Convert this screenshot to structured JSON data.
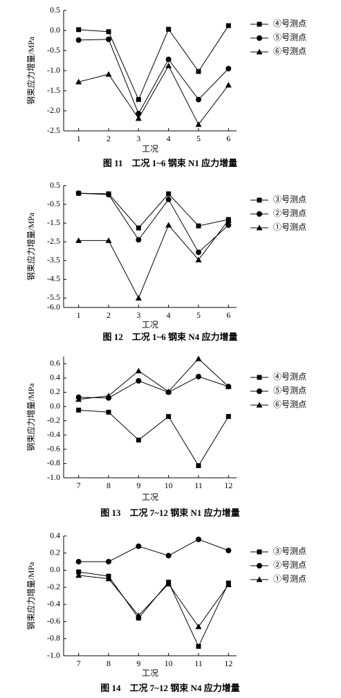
{
  "chart_data": [
    {
      "type": "line",
      "title": "图 11　工况 1~6 钢束 N1 应力增量",
      "xlabel": "工况",
      "ylabel": "钢束应力增量/MPa",
      "x": [
        1,
        2,
        3,
        4,
        5,
        6
      ],
      "xlim": [
        0.5,
        6.5
      ],
      "xticks": [
        1,
        2,
        3,
        4,
        5,
        6
      ],
      "ylim": [
        -2.5,
        0.5
      ],
      "yticks": [
        0.5,
        {
          "value": 0,
          "label": "0.0"
        },
        -0.5,
        {
          "value": -1,
          "label": "-1.0"
        },
        -1.5,
        {
          "value": -2,
          "label": "-2.0"
        },
        -2.5
      ],
      "legend": "right",
      "series": [
        {
          "name": "④号测点",
          "color": "#000000",
          "marker": "square",
          "values": [
            0.02,
            -0.03,
            -1.72,
            0.03,
            -1.02,
            0.12
          ]
        },
        {
          "name": "⑤号测点",
          "color": "#000000",
          "marker": "circle",
          "values": [
            -0.24,
            -0.22,
            -2.07,
            -0.72,
            -1.72,
            -0.95
          ]
        },
        {
          "name": "⑥号测点",
          "color": "#000000",
          "marker": "triangle",
          "values": [
            -1.28,
            -1.09,
            -2.19,
            -0.88,
            -2.34,
            -1.36
          ]
        }
      ]
    },
    {
      "type": "line",
      "title": "图 12　工况 1~6 钢束 N4 应力增量",
      "xlabel": "工况",
      "ylabel": "钢束应力增量/MPa",
      "x": [
        1,
        2,
        3,
        4,
        5,
        6
      ],
      "xlim": [
        0.5,
        6.5
      ],
      "xticks": [
        1,
        2,
        3,
        4,
        5,
        6
      ],
      "ylim": [
        -6,
        0.5
      ],
      "yticks": [
        0.5,
        -0.5,
        -1.5,
        -2.5,
        -3.5,
        -4.5,
        -5.5,
        {
          "value": -6,
          "label": "-6.0"
        }
      ],
      "legend": "right",
      "series": [
        {
          "name": "③号测点",
          "color": "#000000",
          "marker": "square",
          "values": [
            0.09,
            0.06,
            -1.76,
            0.06,
            -1.65,
            -1.31
          ]
        },
        {
          "name": "②号测点",
          "color": "#000000",
          "marker": "circle",
          "values": [
            0.09,
            0.02,
            -2.39,
            -0.24,
            -3.06,
            -1.61
          ]
        },
        {
          "name": "①号测点",
          "color": "#000000",
          "marker": "triangle",
          "values": [
            -2.43,
            -2.43,
            -5.5,
            -1.61,
            -3.46,
            -1.35
          ]
        }
      ]
    },
    {
      "type": "line",
      "title": "图 13　工况 7~12 钢束 N1 应力增量",
      "xlabel": "工况",
      "ylabel": "钢束应力增量/MPa",
      "x": [
        7,
        8,
        9,
        10,
        11,
        12
      ],
      "xlim": [
        6.5,
        12.5
      ],
      "xticks": [
        7,
        8,
        9,
        10,
        11,
        12
      ],
      "ylim": [
        -1,
        0.7
      ],
      "yticks": [
        0.6,
        0.4,
        0.2,
        {
          "value": 0,
          "label": "0.0"
        },
        -0.2,
        -0.4,
        -0.6,
        -0.8,
        {
          "value": -1,
          "label": "-1.0"
        }
      ],
      "legend": "right",
      "series": [
        {
          "name": "④号测点",
          "color": "#000000",
          "marker": "square",
          "values": [
            -0.05,
            -0.08,
            -0.47,
            -0.14,
            -0.83,
            -0.14
          ]
        },
        {
          "name": "⑤号测点",
          "color": "#000000",
          "marker": "circle",
          "values": [
            0.13,
            0.12,
            0.36,
            0.2,
            0.42,
            0.28
          ]
        },
        {
          "name": "⑥号测点",
          "color": "#000000",
          "marker": "triangle",
          "values": [
            0.1,
            0.15,
            0.5,
            0.21,
            0.67,
            0.28
          ]
        }
      ]
    },
    {
      "type": "line",
      "title": "图 14　工况 7~12 钢束 N4 应力增量",
      "xlabel": "工况",
      "ylabel": "钢束应力增量/MPa",
      "x": [
        7,
        8,
        9,
        10,
        11,
        12
      ],
      "xlim": [
        6.5,
        12.5
      ],
      "xticks": [
        7,
        8,
        9,
        10,
        11,
        12
      ],
      "ylim": [
        -1,
        0.4
      ],
      "yticks": [
        0.4,
        0.2,
        {
          "value": 0,
          "label": "0.0"
        },
        -0.2,
        -0.4,
        -0.6,
        -0.8,
        {
          "value": -1,
          "label": "-1.0"
        }
      ],
      "legend": "right",
      "series": [
        {
          "name": "③号测点",
          "color": "#000000",
          "marker": "square",
          "values": [
            -0.02,
            -0.07,
            -0.56,
            -0.14,
            -0.89,
            -0.15
          ]
        },
        {
          "name": "②号测点",
          "color": "#000000",
          "marker": "circle",
          "values": [
            0.1,
            0.1,
            0.28,
            0.17,
            0.36,
            0.23
          ]
        },
        {
          "name": "①号测点",
          "color": "#000000",
          "marker": "triangle",
          "values": [
            -0.06,
            -0.1,
            -0.53,
            -0.16,
            -0.66,
            -0.17
          ]
        }
      ]
    }
  ]
}
